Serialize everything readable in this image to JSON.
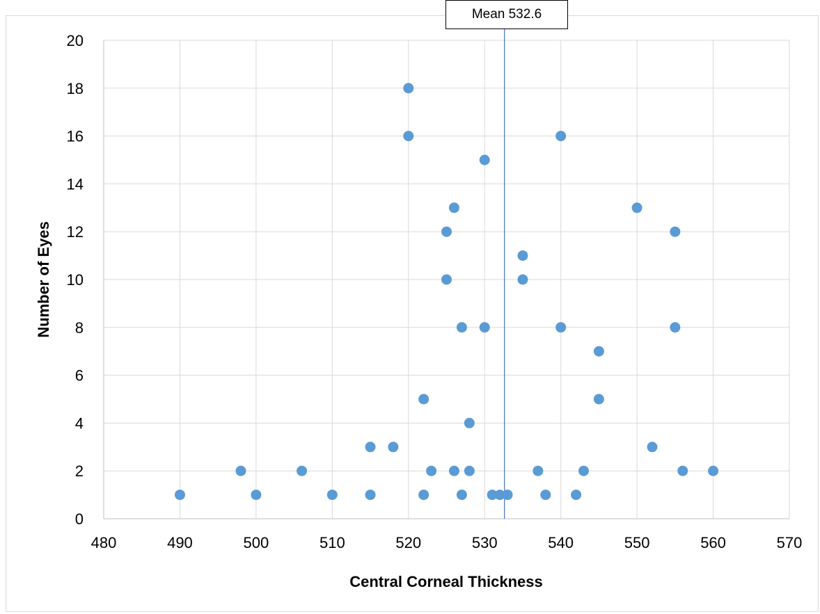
{
  "chart_data": {
    "type": "scatter",
    "title": "",
    "xlabel": "Central Corneal Thickness",
    "ylabel": "Number of Eyes",
    "xlim": [
      480,
      570
    ],
    "ylim": [
      0,
      20
    ],
    "x_ticks": [
      480,
      490,
      500,
      510,
      520,
      530,
      540,
      550,
      560,
      570
    ],
    "y_ticks": [
      0,
      2,
      4,
      6,
      8,
      10,
      12,
      14,
      16,
      18,
      20
    ],
    "grid": true,
    "marker_color": "#5b9bd5",
    "mean_line": {
      "value": 532.6,
      "label": "Mean 532.6",
      "color": "#4472c4"
    },
    "points": [
      {
        "x": 490,
        "y": 1
      },
      {
        "x": 498,
        "y": 2
      },
      {
        "x": 500,
        "y": 1
      },
      {
        "x": 506,
        "y": 2
      },
      {
        "x": 510,
        "y": 1
      },
      {
        "x": 515,
        "y": 3
      },
      {
        "x": 515,
        "y": 1
      },
      {
        "x": 518,
        "y": 3
      },
      {
        "x": 520,
        "y": 18
      },
      {
        "x": 520,
        "y": 16
      },
      {
        "x": 522,
        "y": 5
      },
      {
        "x": 522,
        "y": 1
      },
      {
        "x": 523,
        "y": 2
      },
      {
        "x": 525,
        "y": 12
      },
      {
        "x": 525,
        "y": 10
      },
      {
        "x": 526,
        "y": 13
      },
      {
        "x": 526,
        "y": 2
      },
      {
        "x": 527,
        "y": 8
      },
      {
        "x": 527,
        "y": 1
      },
      {
        "x": 528,
        "y": 4
      },
      {
        "x": 528,
        "y": 2
      },
      {
        "x": 530,
        "y": 15
      },
      {
        "x": 530,
        "y": 8
      },
      {
        "x": 531,
        "y": 1
      },
      {
        "x": 532,
        "y": 1
      },
      {
        "x": 533,
        "y": 1
      },
      {
        "x": 535,
        "y": 11
      },
      {
        "x": 535,
        "y": 10
      },
      {
        "x": 537,
        "y": 2
      },
      {
        "x": 538,
        "y": 1
      },
      {
        "x": 540,
        "y": 16
      },
      {
        "x": 540,
        "y": 8
      },
      {
        "x": 542,
        "y": 1
      },
      {
        "x": 543,
        "y": 2
      },
      {
        "x": 545,
        "y": 7
      },
      {
        "x": 545,
        "y": 5
      },
      {
        "x": 550,
        "y": 13
      },
      {
        "x": 552,
        "y": 3
      },
      {
        "x": 555,
        "y": 12
      },
      {
        "x": 555,
        "y": 8
      },
      {
        "x": 556,
        "y": 2
      },
      {
        "x": 560,
        "y": 2
      }
    ]
  }
}
